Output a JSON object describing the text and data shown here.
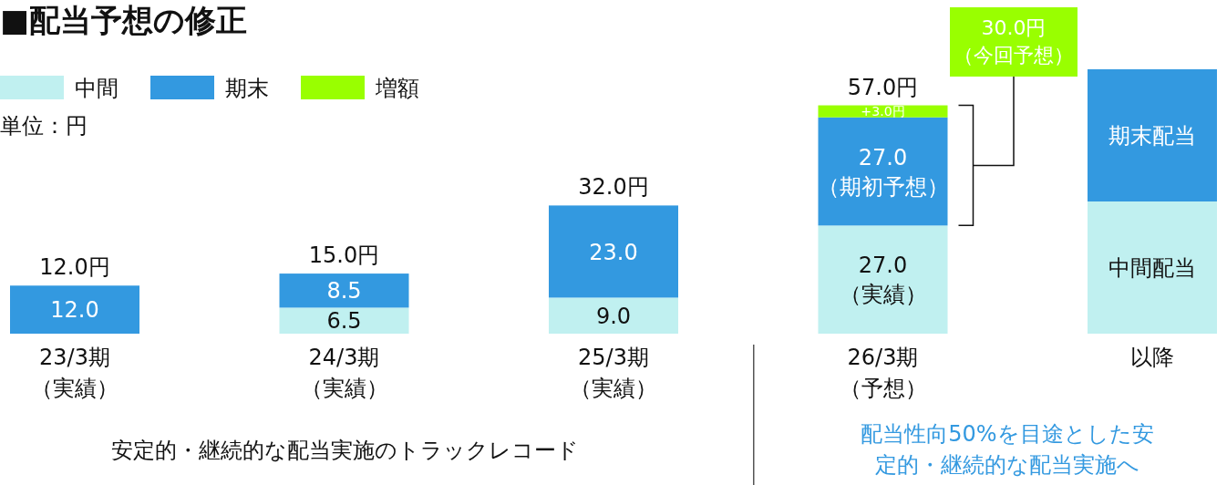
{
  "chart_data": {
    "type": "bar",
    "stacked": true,
    "title": "■配当予想の修正",
    "categories": [
      "23/3期（実績）",
      "24/3期（実績）",
      "25/3期（実績）",
      "26/3期（予想）",
      "以降"
    ],
    "series": [
      {
        "name": "中間",
        "color": "#c0f0f0",
        "values": [
          null,
          6.5,
          9.0,
          27.0,
          33
        ],
        "value_labels": [
          null,
          "6.5",
          "9.0",
          "27.0（実績）",
          "中間配当"
        ]
      },
      {
        "name": "期末",
        "color": "#3399e0",
        "values": [
          12.0,
          8.5,
          23.0,
          27.0,
          33
        ],
        "value_labels": [
          "12.0",
          "8.5",
          "23.0",
          "27.0（期初予想）",
          "期末配当"
        ]
      },
      {
        "name": "増額",
        "color": "#99ff00",
        "values": [
          null,
          null,
          null,
          3.0,
          null
        ],
        "value_labels": [
          null,
          null,
          null,
          "+3.0円",
          null
        ]
      }
    ],
    "totals": [
      "12.0円",
      "15.0円",
      "32.0円",
      "57.0円",
      null
    ],
    "legend": "top left",
    "annotations": [
      "単位：円",
      "30.0円（今回予想）",
      "安定的・継続的な配当実施のトラックレコード",
      "配当性向50%を目途とした安定的・継続的な配当実施へ"
    ]
  }
}
